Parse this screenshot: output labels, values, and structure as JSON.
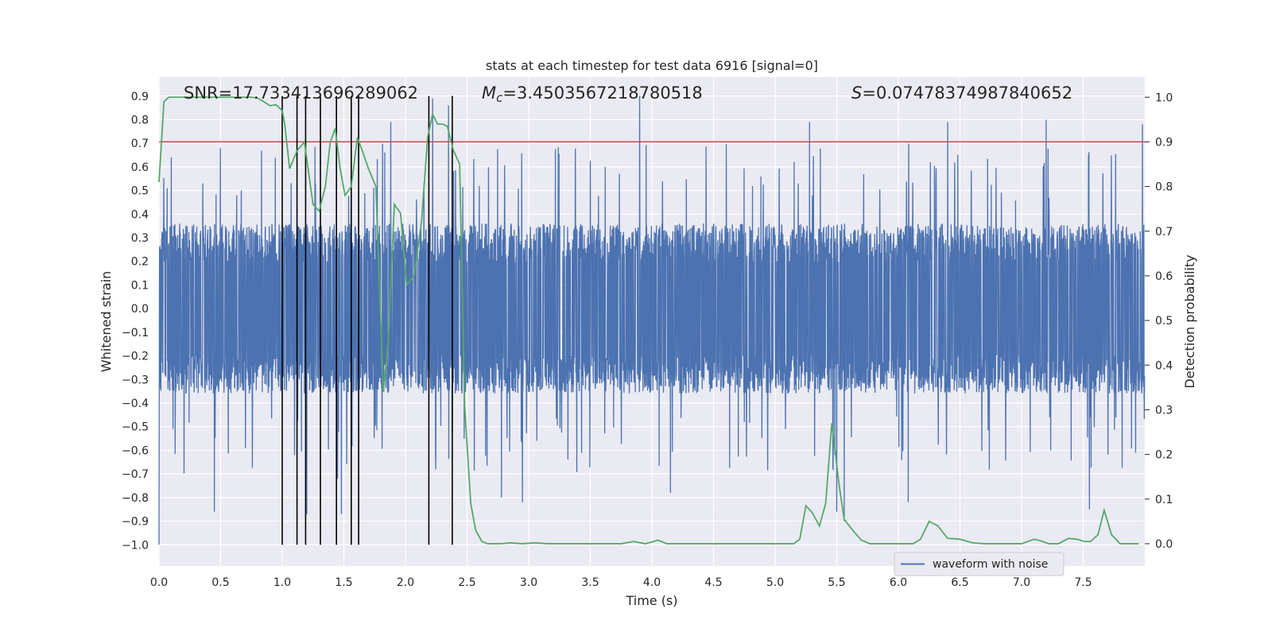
{
  "chart_data": {
    "type": "line",
    "title": "stats at each timestep for test data 6916 [signal=0]",
    "xlabel": "Time (s)",
    "ylabel_left": "Whitened strain",
    "ylabel_right": "Detection probability",
    "xlim": [
      0.0,
      8.0
    ],
    "ylim_left": [
      -1.09,
      0.98
    ],
    "ylim_right": [
      -0.05,
      1.045
    ],
    "x_ticks": [
      "0.0",
      "0.5",
      "1.0",
      "1.5",
      "2.0",
      "2.5",
      "3.0",
      "3.5",
      "4.0",
      "4.5",
      "5.0",
      "5.5",
      "6.0",
      "6.5",
      "7.0",
      "7.5"
    ],
    "y_ticks_left": [
      "0.9",
      "0.8",
      "0.7",
      "0.6",
      "0.5",
      "0.4",
      "0.3",
      "0.2",
      "0.1",
      "0.0",
      "-0.1",
      "-0.2",
      "-0.3",
      "-0.4",
      "-0.5",
      "-0.6",
      "-0.7",
      "-0.8",
      "-0.9",
      "-1.0"
    ],
    "y_ticks_right": [
      "1.0",
      "0.9",
      "0.8",
      "0.7",
      "0.6",
      "0.5",
      "0.4",
      "0.3",
      "0.2",
      "0.1",
      "0.0"
    ],
    "annotations": {
      "snr": "SNR=17.733413696289062",
      "mc_symbol": "M",
      "mc_subscript": "c",
      "mc_value": "=3.4503567218780518",
      "s_symbol": "S",
      "s_value": "=0.07478374987840652"
    },
    "threshold_probability": 0.9,
    "event_lines_x": [
      1.0,
      1.12,
      1.19,
      1.31,
      1.44,
      1.56,
      1.62,
      2.19,
      2.38
    ],
    "event_lines_ylim": [
      -1.0,
      0.9
    ],
    "waveform": {
      "name": "waveform with noise",
      "sample_rate_hz": 512,
      "typical_abs": 0.36,
      "peaks": [
        {
          "x": 0.0,
          "y": -1.0
        },
        {
          "x": 0.1,
          "y": 0.64
        },
        {
          "x": 0.45,
          "y": -0.86
        },
        {
          "x": 1.1,
          "y": -0.62
        },
        {
          "x": 1.2,
          "y": -0.87
        },
        {
          "x": 1.45,
          "y": -0.72
        },
        {
          "x": 1.48,
          "y": -0.87
        },
        {
          "x": 1.88,
          "y": 0.79
        },
        {
          "x": 2.22,
          "y": 0.89
        },
        {
          "x": 2.35,
          "y": 0.86
        },
        {
          "x": 2.78,
          "y": -0.8
        },
        {
          "x": 2.95,
          "y": -0.82
        },
        {
          "x": 3.9,
          "y": 0.9
        },
        {
          "x": 4.15,
          "y": -0.78
        },
        {
          "x": 5.28,
          "y": 0.79
        },
        {
          "x": 5.5,
          "y": -0.86
        },
        {
          "x": 5.56,
          "y": -0.9
        },
        {
          "x": 6.08,
          "y": -0.82
        },
        {
          "x": 6.4,
          "y": 0.79
        },
        {
          "x": 7.2,
          "y": 0.8
        },
        {
          "x": 7.55,
          "y": -0.85
        },
        {
          "x": 7.98,
          "y": 0.78
        }
      ]
    },
    "probability": {
      "x": [
        0.0,
        0.04,
        0.08,
        0.12,
        0.16,
        0.2,
        0.25,
        0.3,
        0.35,
        0.4,
        0.45,
        0.5,
        0.55,
        0.6,
        0.65,
        0.7,
        0.75,
        0.8,
        0.85,
        0.9,
        0.95,
        1.0,
        1.02,
        1.06,
        1.12,
        1.18,
        1.25,
        1.3,
        1.35,
        1.39,
        1.43,
        1.47,
        1.51,
        1.56,
        1.61,
        1.65,
        1.7,
        1.76,
        1.82,
        1.86,
        1.91,
        1.96,
        2.01,
        2.07,
        2.13,
        2.18,
        2.22,
        2.26,
        2.3,
        2.34,
        2.39,
        2.44,
        2.48,
        2.53,
        2.57,
        2.62,
        2.67,
        2.72,
        2.78,
        2.85,
        2.95,
        3.05,
        3.15,
        3.25,
        3.35,
        3.45,
        3.55,
        3.65,
        3.75,
        3.85,
        3.95,
        4.05,
        4.12,
        4.22,
        4.3,
        4.4,
        4.5,
        4.6,
        4.7,
        4.8,
        4.9,
        5.0,
        5.1,
        5.15,
        5.2,
        5.25,
        5.3,
        5.36,
        5.41,
        5.46,
        5.52,
        5.56,
        5.63,
        5.7,
        5.77,
        5.85,
        5.95,
        6.05,
        6.12,
        6.18,
        6.25,
        6.32,
        6.4,
        6.5,
        6.6,
        6.7,
        6.8,
        6.9,
        7.0,
        7.1,
        7.15,
        7.22,
        7.3,
        7.38,
        7.45,
        7.51,
        7.56,
        7.62,
        7.67,
        7.73,
        7.8,
        7.85,
        7.9,
        7.95
      ],
      "y": [
        0.81,
        0.99,
        1.0,
        1.0,
        1.0,
        1.0,
        1.0,
        1.0,
        1.0,
        1.0,
        1.0,
        1.0,
        1.0,
        1.0,
        1.0,
        1.0,
        1.0,
        0.998,
        0.99,
        0.981,
        0.983,
        0.97,
        0.94,
        0.84,
        0.88,
        0.9,
        0.76,
        0.745,
        0.8,
        0.9,
        0.93,
        0.84,
        0.78,
        0.8,
        0.91,
        0.88,
        0.84,
        0.8,
        0.34,
        0.45,
        0.76,
        0.74,
        0.58,
        0.6,
        0.72,
        0.91,
        0.962,
        0.94,
        0.94,
        0.935,
        0.88,
        0.85,
        0.31,
        0.09,
        0.03,
        0.005,
        0.0,
        0.0,
        0.0,
        0.002,
        0.0,
        0.002,
        0.0,
        0.0,
        0.0,
        0.0,
        0.0,
        0.0,
        0.0,
        0.005,
        0.0,
        0.008,
        0.0,
        0.0,
        0.0,
        0.0,
        0.0,
        0.0,
        0.0,
        0.0,
        0.0,
        0.0,
        0.0,
        0.0,
        0.01,
        0.085,
        0.07,
        0.04,
        0.09,
        0.27,
        0.13,
        0.055,
        0.03,
        0.008,
        0.0,
        0.0,
        0.0,
        0.0,
        0.0,
        0.01,
        0.05,
        0.04,
        0.012,
        0.01,
        0.002,
        0.0,
        0.0,
        0.0,
        0.0,
        0.01,
        0.007,
        0.0,
        0.0,
        0.012,
        0.01,
        0.005,
        0.005,
        0.02,
        0.075,
        0.02,
        0.0,
        0.0,
        0.0,
        0.0
      ]
    },
    "legend": {
      "label": "waveform with noise",
      "location": "lower-right"
    }
  },
  "colors": {
    "plot_background": "#eaeaf2",
    "grid": "#ffffff",
    "waveform": "#4c72b0",
    "probability": "#55a868",
    "threshold": "#c44e52",
    "event_lines": "#000000",
    "text": "#262626"
  }
}
